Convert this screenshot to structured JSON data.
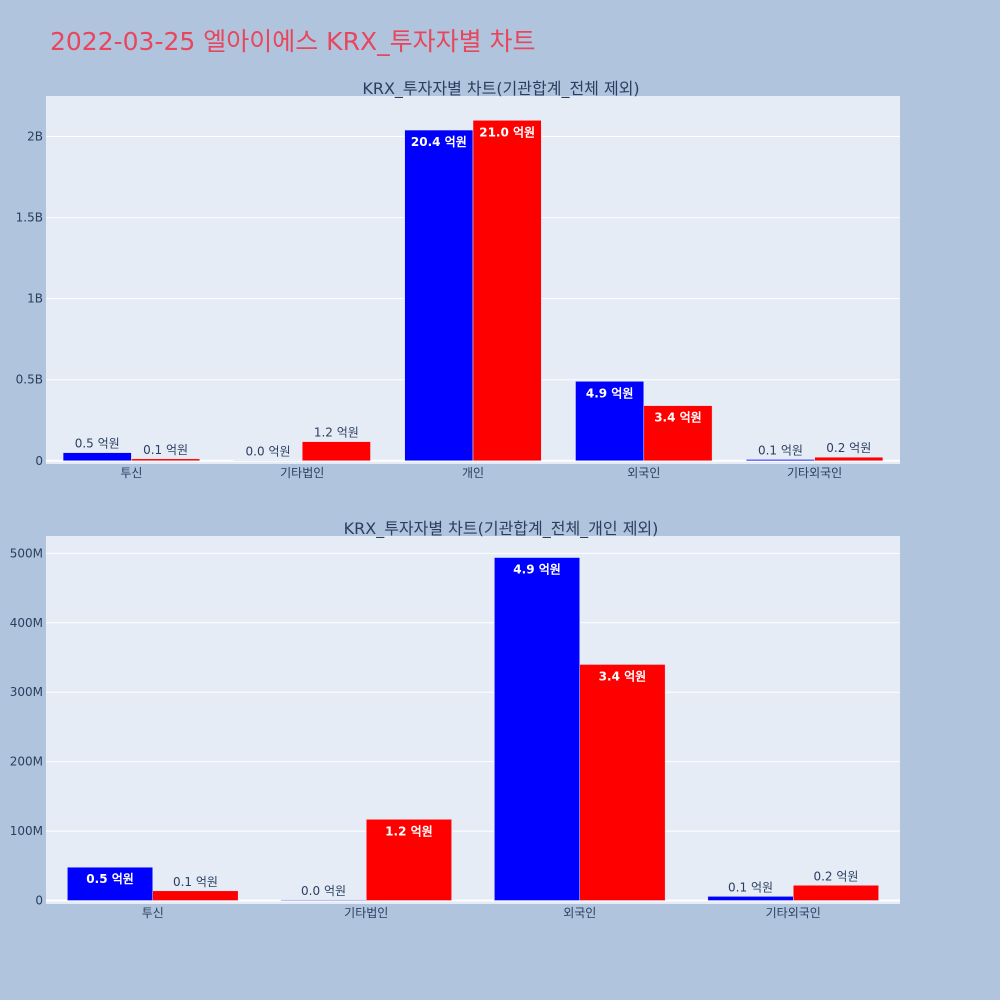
{
  "page_title": "2022-03-25 엘아이에스 KRX_투자자별 차트",
  "colors": {
    "series_a": "#0000ff",
    "series_b": "#ff0000",
    "plot_bg": "#e5ecf6",
    "page_bg": "#b0c4de",
    "title": "#e8465c"
  },
  "chart_data": [
    {
      "type": "bar",
      "title": "KRX_투자자별 차트(기관합계_전체 제외)",
      "categories": [
        "투신",
        "기타법인",
        "개인",
        "외국인",
        "기타외국인"
      ],
      "series": [
        {
          "values": [
            50000000,
            1000000,
            2040000000,
            490000000,
            8000000
          ],
          "labels": [
            "0.5 억원",
            "0.0 억원",
            "20.4 억원",
            "4.9 억원",
            "0.1 억원"
          ]
        },
        {
          "values": [
            12000000,
            118000000,
            2100000000,
            340000000,
            22000000
          ],
          "labels": [
            "0.1 억원",
            "1.2 억원",
            "21.0 억원",
            "3.4 억원",
            "0.2 억원"
          ]
        }
      ],
      "yticks": [
        0,
        500000000,
        1000000000,
        1500000000,
        2000000000
      ],
      "ytick_labels": [
        "0",
        "0.5B",
        "1B",
        "1.5B",
        "2B"
      ],
      "ylim": [
        -20000000,
        2250000000
      ],
      "grid": true,
      "legend": "none"
    },
    {
      "type": "bar",
      "title": "KRX_투자자별 차트(기관합계_전체_개인 제외)",
      "categories": [
        "투신",
        "기타법인",
        "외국인",
        "기타외국인"
      ],
      "series": [
        {
          "values": [
            48000000,
            1000000,
            494000000,
            6000000
          ],
          "labels": [
            "0.5 억원",
            "0.0 억원",
            "4.9 억원",
            "0.1 억원"
          ]
        },
        {
          "values": [
            14000000,
            117000000,
            340000000,
            22000000
          ],
          "labels": [
            "0.1 억원",
            "1.2 억원",
            "3.4 억원",
            "0.2 억원"
          ]
        }
      ],
      "yticks": [
        0,
        100000000,
        200000000,
        300000000,
        400000000,
        500000000
      ],
      "ytick_labels": [
        "0",
        "100M",
        "200M",
        "300M",
        "400M",
        "500M"
      ],
      "ylim": [
        -5000000,
        525000000
      ],
      "grid": true,
      "legend": "none"
    }
  ]
}
